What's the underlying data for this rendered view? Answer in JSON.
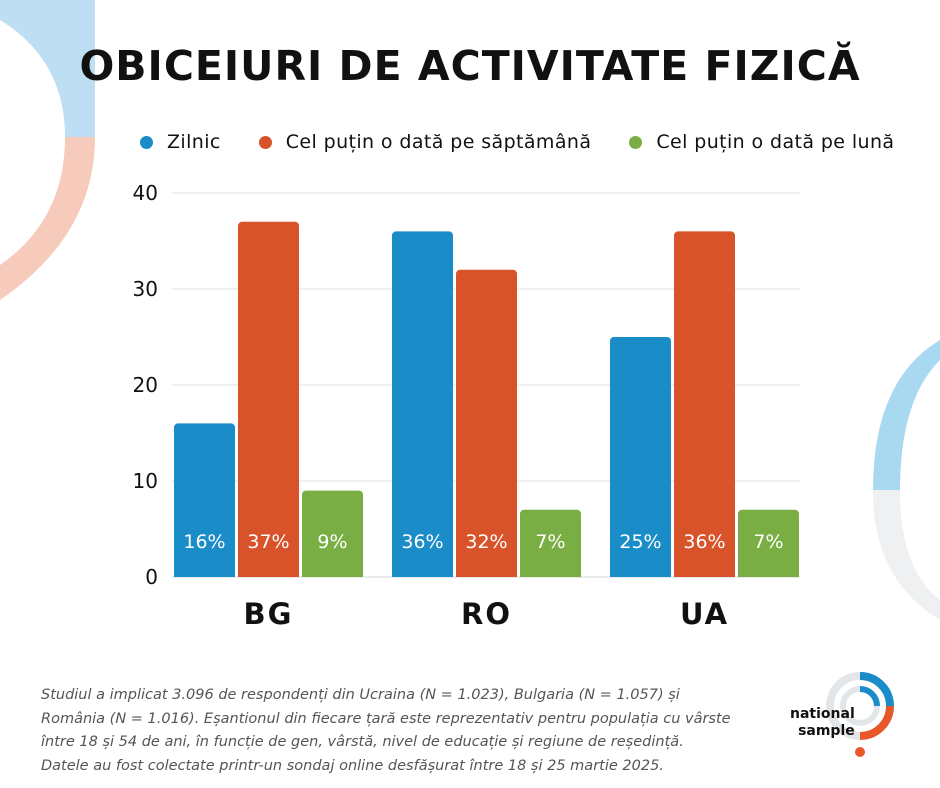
{
  "title": "OBICEIURI DE ACTIVITATE FIZICĂ",
  "legend": [
    {
      "label": "Zilnic",
      "color": "#1a8cc8"
    },
    {
      "label": "Cel puțin o dată pe săptămână",
      "color": "#d9532a"
    },
    {
      "label": "Cel puțin o dată pe lună",
      "color": "#79ae44"
    }
  ],
  "chart_data": {
    "type": "bar",
    "title": "OBICEIURI DE ACTIVITATE FIZICĂ",
    "categories": [
      "BG",
      "RO",
      "UA"
    ],
    "series": [
      {
        "name": "Zilnic",
        "values": [
          16,
          36,
          25
        ],
        "labels": [
          "16%",
          "36%",
          "25%"
        ],
        "color": "#1a8cc8"
      },
      {
        "name": "Cel puțin o dată pe săptămână",
        "values": [
          37,
          32,
          36
        ],
        "labels": [
          "37%",
          "32%",
          "36%"
        ],
        "color": "#d9532a"
      },
      {
        "name": "Cel puțin o dată pe lună",
        "values": [
          9,
          7,
          7
        ],
        "labels": [
          "9%",
          "7%",
          "7%"
        ],
        "color": "#79ae44"
      }
    ],
    "yticks": [
      0,
      10,
      20,
      30,
      40
    ],
    "ylim": [
      0,
      40
    ],
    "grid": true,
    "legend_position": "top"
  },
  "footnote": {
    "line1": "Studiul a implicat 3.096 de respondenți din Ucraina (N = 1.023), Bulgaria (N = 1.057) și",
    "line2": "România (N = 1.016). Eșantionul din fiecare țară este reprezentativ pentru populația cu vârste",
    "line3": "între 18 și 54 de ani, în funcție de gen, vârstă, nivel de educație și regiune de reședință.",
    "line4": "Datele au fost colectate printr-un sondaj online desfășurat între 18 și 25 martie 2025."
  },
  "logo": {
    "line1": "national",
    "line2": "sample"
  },
  "decor_colors": {
    "blue": "#a9d8f1",
    "peach": "#f7c9b8",
    "gray": "#eef0f1",
    "accent_blue": "#1a8cc8",
    "accent_orange": "#e8582a"
  }
}
